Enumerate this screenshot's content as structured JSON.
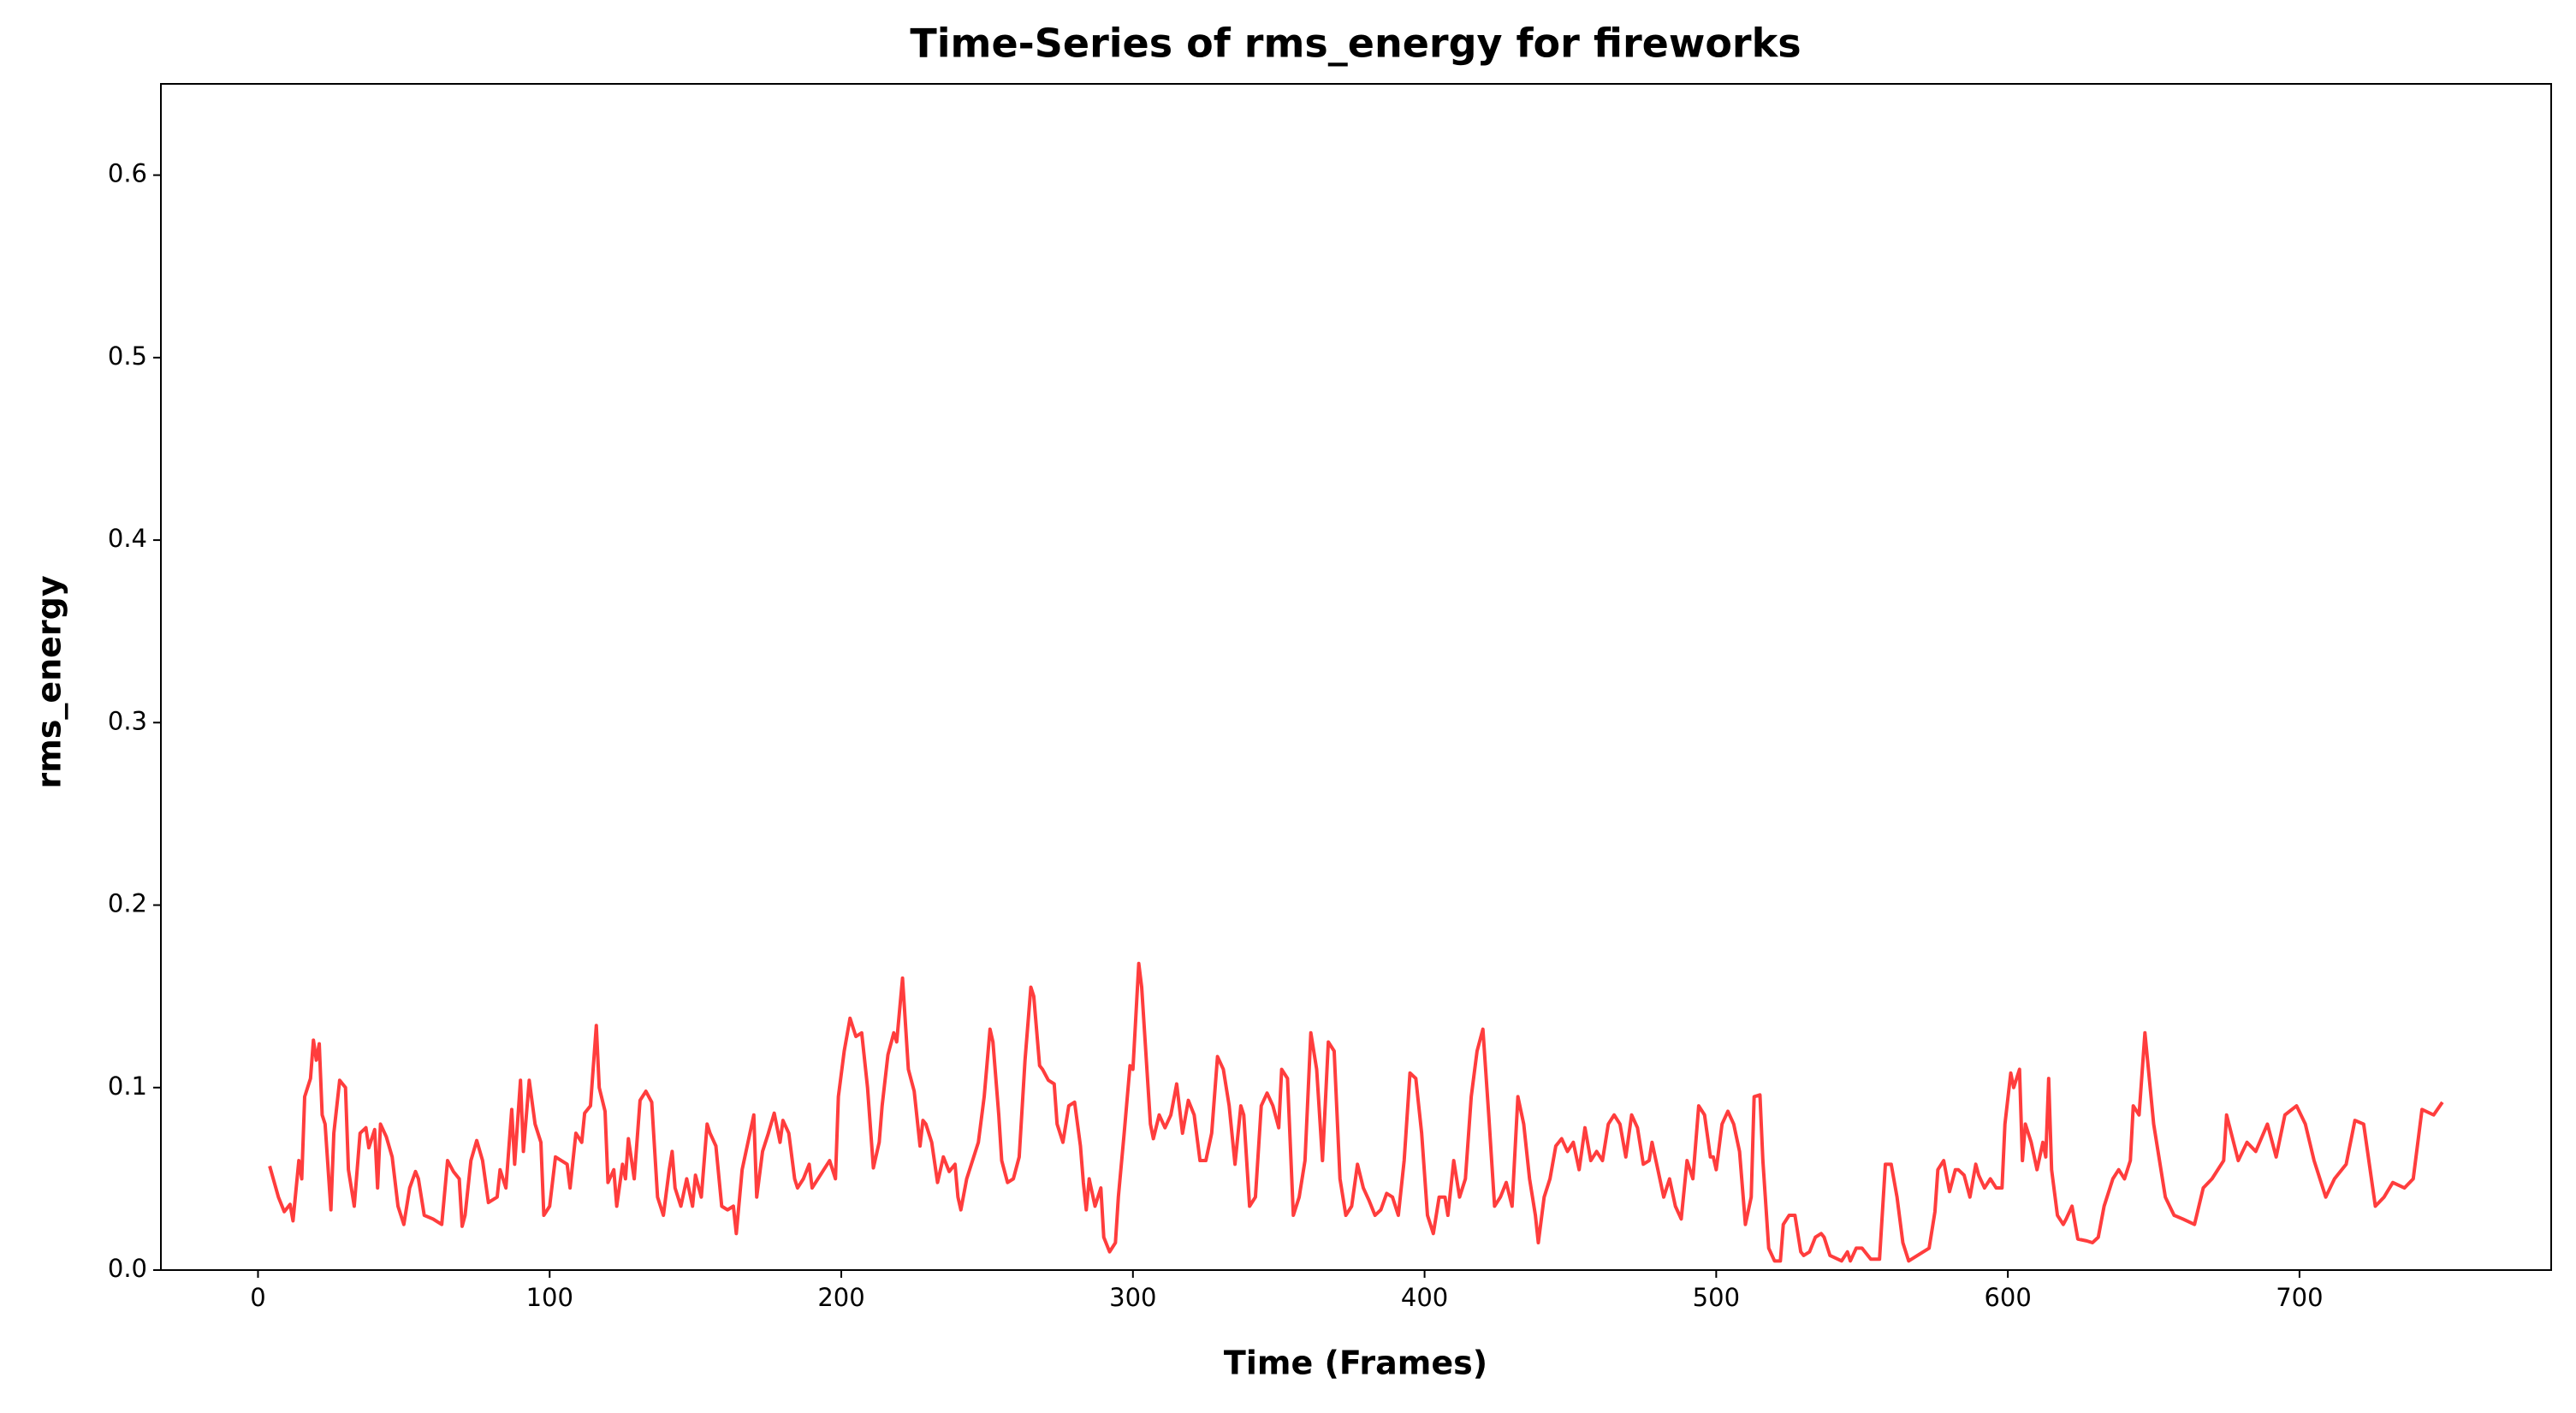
{
  "chart_data": {
    "type": "line",
    "title": "Time-Series of rms_energy for fireworks",
    "x_label": "Time (Frames)",
    "y_label": "rms_energy",
    "xlim": [
      -33.3,
      786.3
    ],
    "ylim": [
      0,
      0.65
    ],
    "xticks": [
      0,
      100,
      200,
      300,
      400,
      500,
      600,
      700
    ],
    "yticks": [
      {
        "value": 0,
        "label": "0.0"
      },
      0.1,
      0.2,
      0.3,
      0.4,
      0.5,
      0.6
    ],
    "series": [
      {
        "color": "#ff3333",
        "x": [
          4,
          7,
          9,
          11,
          12,
          14,
          15,
          16,
          18,
          19,
          20,
          21,
          22,
          23,
          25,
          26,
          28,
          30,
          31,
          33,
          35,
          37,
          38,
          40,
          41,
          42,
          44,
          46,
          48,
          50,
          52,
          54,
          55,
          57,
          60,
          63,
          65,
          67,
          69,
          70,
          71,
          73,
          75,
          77,
          79,
          82,
          83,
          85,
          87,
          88,
          90,
          91,
          93,
          95,
          97,
          98,
          100,
          102,
          104,
          106,
          107,
          109,
          111,
          112,
          114,
          116,
          117,
          119,
          120,
          122,
          123,
          125,
          126,
          127,
          129,
          131,
          133,
          135,
          137,
          139,
          141,
          142,
          143,
          145,
          147,
          149,
          150,
          152,
          154,
          155,
          157,
          159,
          161,
          163,
          164,
          166,
          168,
          170,
          171,
          173,
          175,
          177,
          179,
          180,
          182,
          184,
          185,
          187,
          189,
          190,
          192,
          194,
          196,
          198,
          199,
          201,
          203,
          205,
          207,
          209,
          211,
          213,
          214,
          216,
          218,
          219,
          221,
          223,
          225,
          227,
          228,
          229,
          231,
          233,
          235,
          237,
          239,
          240,
          241,
          243,
          245,
          247,
          249,
          251,
          252,
          254,
          255,
          257,
          259,
          261,
          263,
          265,
          266,
          268,
          269,
          271,
          273,
          274,
          276,
          278,
          280,
          282,
          283,
          284,
          285,
          287,
          289,
          290,
          292,
          294,
          295,
          297,
          299,
          300,
          302,
          303,
          304,
          306,
          307,
          309,
          311,
          313,
          315,
          317,
          319,
          321,
          323,
          325,
          327,
          329,
          331,
          333,
          335,
          337,
          338,
          340,
          342,
          344,
          346,
          348,
          350,
          351,
          353,
          355,
          357,
          359,
          361,
          363,
          365,
          367,
          369,
          371,
          373,
          375,
          377,
          379,
          381,
          383,
          385,
          387,
          389,
          391,
          393,
          395,
          397,
          399,
          401,
          403,
          405,
          407,
          408,
          410,
          412,
          414,
          416,
          418,
          420,
          422,
          424,
          426,
          428,
          430,
          432,
          434,
          436,
          438,
          439,
          441,
          443,
          445,
          447,
          449,
          451,
          453,
          455,
          457,
          459,
          461,
          463,
          465,
          467,
          469,
          471,
          473,
          475,
          477,
          478,
          480,
          482,
          484,
          486,
          488,
          490,
          492,
          494,
          496,
          498,
          499,
          500,
          502,
          504,
          506,
          508,
          510,
          512,
          513,
          515,
          516,
          518,
          520,
          522,
          523,
          525,
          527,
          529,
          530,
          532,
          534,
          536,
          537,
          539,
          543,
          545,
          546,
          548,
          550,
          552,
          553,
          556,
          558,
          560,
          562,
          564,
          566,
          569,
          573,
          575,
          576,
          578,
          580,
          582,
          583,
          585,
          587,
          589,
          590,
          592,
          594,
          596,
          598,
          599,
          601,
          602,
          604,
          605,
          606,
          608,
          610,
          612,
          613,
          614,
          615,
          617,
          619,
          620,
          622,
          624,
          627,
          629,
          631,
          633,
          635,
          636,
          638,
          640,
          642,
          643,
          645,
          647,
          650,
          654,
          657,
          660,
          664,
          667,
          670,
          674,
          675,
          679,
          682,
          685,
          689,
          692,
          695,
          699,
          702,
          705,
          709,
          712,
          716,
          719,
          722,
          726,
          729,
          732,
          736,
          739,
          742,
          746,
          749
        ],
        "values": [
          0.057,
          0.04,
          0.032,
          0.036,
          0.027,
          0.06,
          0.05,
          0.095,
          0.105,
          0.126,
          0.115,
          0.124,
          0.085,
          0.08,
          0.033,
          0.075,
          0.104,
          0.1,
          0.055,
          0.035,
          0.075,
          0.078,
          0.067,
          0.077,
          0.045,
          0.08,
          0.073,
          0.062,
          0.035,
          0.025,
          0.045,
          0.054,
          0.05,
          0.03,
          0.028,
          0.025,
          0.06,
          0.054,
          0.05,
          0.024,
          0.03,
          0.06,
          0.071,
          0.06,
          0.037,
          0.04,
          0.055,
          0.045,
          0.088,
          0.058,
          0.104,
          0.065,
          0.104,
          0.08,
          0.07,
          0.03,
          0.035,
          0.062,
          0.06,
          0.058,
          0.045,
          0.075,
          0.07,
          0.086,
          0.09,
          0.134,
          0.1,
          0.087,
          0.048,
          0.055,
          0.035,
          0.058,
          0.05,
          0.072,
          0.05,
          0.093,
          0.098,
          0.092,
          0.04,
          0.03,
          0.055,
          0.065,
          0.045,
          0.035,
          0.05,
          0.035,
          0.052,
          0.04,
          0.08,
          0.075,
          0.068,
          0.035,
          0.033,
          0.035,
          0.02,
          0.055,
          0.07,
          0.085,
          0.04,
          0.065,
          0.075,
          0.086,
          0.07,
          0.082,
          0.075,
          0.05,
          0.045,
          0.05,
          0.058,
          0.045,
          0.05,
          0.055,
          0.06,
          0.05,
          0.095,
          0.12,
          0.138,
          0.128,
          0.13,
          0.1,
          0.056,
          0.07,
          0.09,
          0.118,
          0.13,
          0.125,
          0.16,
          0.11,
          0.098,
          0.068,
          0.082,
          0.08,
          0.07,
          0.048,
          0.062,
          0.054,
          0.058,
          0.04,
          0.033,
          0.05,
          0.06,
          0.07,
          0.095,
          0.132,
          0.125,
          0.085,
          0.06,
          0.048,
          0.05,
          0.062,
          0.115,
          0.155,
          0.15,
          0.112,
          0.11,
          0.104,
          0.102,
          0.08,
          0.07,
          0.09,
          0.092,
          0.068,
          0.048,
          0.033,
          0.05,
          0.035,
          0.045,
          0.018,
          0.01,
          0.015,
          0.04,
          0.075,
          0.112,
          0.11,
          0.168,
          0.155,
          0.13,
          0.08,
          0.072,
          0.085,
          0.078,
          0.085,
          0.102,
          0.075,
          0.093,
          0.085,
          0.06,
          0.06,
          0.075,
          0.117,
          0.11,
          0.09,
          0.058,
          0.09,
          0.085,
          0.035,
          0.04,
          0.09,
          0.097,
          0.09,
          0.078,
          0.11,
          0.105,
          0.03,
          0.04,
          0.06,
          0.13,
          0.11,
          0.06,
          0.125,
          0.12,
          0.05,
          0.03,
          0.035,
          0.058,
          0.045,
          0.038,
          0.03,
          0.033,
          0.042,
          0.04,
          0.03,
          0.06,
          0.108,
          0.105,
          0.075,
          0.03,
          0.02,
          0.04,
          0.04,
          0.03,
          0.06,
          0.04,
          0.05,
          0.095,
          0.12,
          0.132,
          0.085,
          0.035,
          0.04,
          0.048,
          0.035,
          0.095,
          0.08,
          0.05,
          0.03,
          0.015,
          0.04,
          0.05,
          0.068,
          0.072,
          0.065,
          0.07,
          0.055,
          0.078,
          0.06,
          0.065,
          0.06,
          0.08,
          0.085,
          0.08,
          0.062,
          0.085,
          0.078,
          0.058,
          0.06,
          0.07,
          0.055,
          0.04,
          0.05,
          0.035,
          0.028,
          0.06,
          0.05,
          0.09,
          0.085,
          0.062,
          0.062,
          0.055,
          0.08,
          0.087,
          0.08,
          0.065,
          0.025,
          0.04,
          0.095,
          0.096,
          0.06,
          0.012,
          0.005,
          0.005,
          0.025,
          0.03,
          0.03,
          0.01,
          0.008,
          0.01,
          0.018,
          0.02,
          0.018,
          0.008,
          0.005,
          0.01,
          0.005,
          0.012,
          0.012,
          0.008,
          0.006,
          0.006,
          0.058,
          0.058,
          0.04,
          0.015,
          0.005,
          0.008,
          0.012,
          0.032,
          0.055,
          0.06,
          0.043,
          0.055,
          0.055,
          0.052,
          0.04,
          0.058,
          0.052,
          0.045,
          0.05,
          0.045,
          0.045,
          0.08,
          0.108,
          0.1,
          0.11,
          0.06,
          0.08,
          0.07,
          0.055,
          0.07,
          0.062,
          0.105,
          0.055,
          0.03,
          0.025,
          0.028,
          0.035,
          0.017,
          0.016,
          0.015,
          0.018,
          0.035,
          0.045,
          0.05,
          0.055,
          0.05,
          0.06,
          0.09,
          0.085,
          0.13,
          0.08,
          0.04,
          0.03,
          0.028,
          0.025,
          0.045,
          0.05,
          0.06,
          0.085,
          0.06,
          0.07,
          0.065,
          0.08,
          0.062,
          0.085,
          0.09,
          0.08,
          0.06,
          0.04,
          0.05,
          0.058,
          0.082,
          0.08,
          0.035,
          0.04,
          0.048,
          0.045,
          0.05,
          0.088,
          0.085,
          0.092
        ]
      }
    ]
  }
}
